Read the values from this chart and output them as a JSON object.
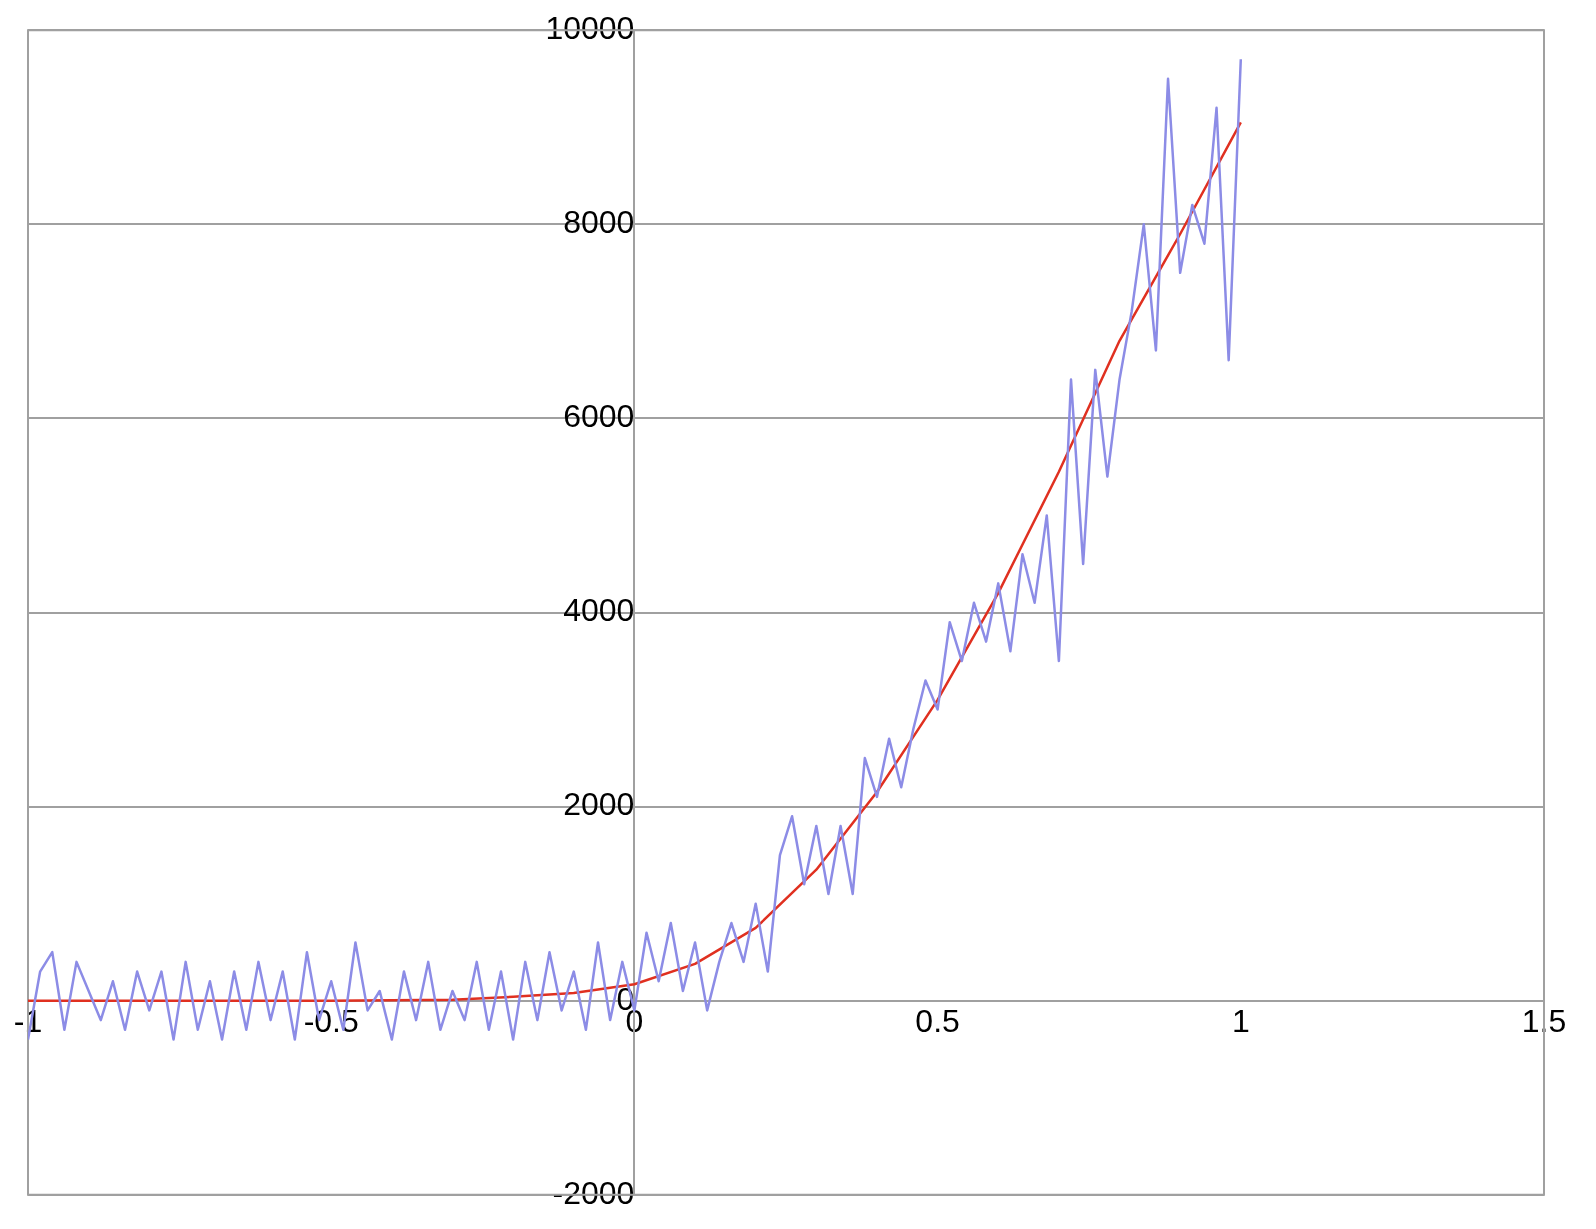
{
  "chart_data": {
    "type": "line",
    "xlim": [
      -1,
      1.5
    ],
    "xticks": [
      -1,
      -0.5,
      0,
      0.5,
      1,
      1.5
    ],
    "ylim": [
      -2000,
      10000
    ],
    "yticks": [
      -2000,
      0,
      2000,
      4000,
      6000,
      8000,
      10000
    ],
    "grid": "y",
    "legend": false,
    "marker": "none",
    "line_style": "solid",
    "series": [
      {
        "color": "#8c8ce6",
        "x": [
          -1,
          -0.98,
          -0.96,
          -0.94,
          -0.92,
          -0.9,
          -0.88,
          -0.86,
          -0.84,
          -0.82,
          -0.8,
          -0.78,
          -0.76,
          -0.74,
          -0.72,
          -0.7,
          -0.68,
          -0.66,
          -0.64,
          -0.62,
          -0.6,
          -0.58,
          -0.56,
          -0.54,
          -0.52,
          -0.5,
          -0.48,
          -0.46,
          -0.44,
          -0.42,
          -0.4,
          -0.38,
          -0.36,
          -0.34,
          -0.32,
          -0.3,
          -0.28,
          -0.26,
          -0.24,
          -0.22,
          -0.2,
          -0.18,
          -0.16,
          -0.14,
          -0.12,
          -0.1,
          -0.08,
          -0.06,
          -0.04,
          -0.02,
          0,
          0.02,
          0.04,
          0.06,
          0.08,
          0.1,
          0.12,
          0.14,
          0.16,
          0.18,
          0.2,
          0.22,
          0.24,
          0.26,
          0.28,
          0.3,
          0.32,
          0.34,
          0.36,
          0.38,
          0.4,
          0.42,
          0.44,
          0.46,
          0.48,
          0.5,
          0.52,
          0.54,
          0.56,
          0.58,
          0.6,
          0.62,
          0.64,
          0.66,
          0.68,
          0.7,
          0.72,
          0.74,
          0.76,
          0.78,
          0.8,
          0.82,
          0.84,
          0.86,
          0.88,
          0.9,
          0.92,
          0.94,
          0.96,
          0.98,
          1
        ],
        "values": [
          -400,
          300,
          500,
          -300,
          400,
          100,
          -200,
          200,
          -300,
          300,
          -100,
          300,
          -400,
          400,
          -300,
          200,
          -400,
          300,
          -300,
          400,
          -200,
          300,
          -400,
          500,
          -200,
          200,
          -300,
          600,
          -100,
          100,
          -400,
          300,
          -200,
          400,
          -300,
          100,
          -200,
          400,
          -300,
          300,
          -400,
          400,
          -200,
          500,
          -100,
          300,
          -300,
          600,
          -200,
          400,
          -100,
          700,
          200,
          800,
          100,
          600,
          -100,
          400,
          800,
          400,
          1000,
          300,
          1500,
          1900,
          1200,
          1800,
          1100,
          1800,
          1100,
          2500,
          2100,
          2700,
          2200,
          2800,
          3300,
          3000,
          3900,
          3500,
          4100,
          3700,
          4300,
          3600,
          4600,
          4100,
          5000,
          3500,
          6400,
          4500,
          6500,
          5400,
          6400,
          7100,
          8000,
          6700,
          9500,
          7500,
          8200,
          7800,
          9200,
          6600,
          9700
        ]
      },
      {
        "color": "#e03020",
        "x": [
          -1,
          -0.5,
          -0.3,
          -0.2,
          -0.1,
          0,
          0.1,
          0.2,
          0.3,
          0.4,
          0.5,
          0.6,
          0.7,
          0.8,
          0.9,
          1
        ],
        "values": [
          0,
          0,
          10,
          40,
          80,
          170,
          380,
          750,
          1350,
          2150,
          3100,
          4200,
          5450,
          6800,
          7900,
          9050
        ]
      }
    ]
  }
}
